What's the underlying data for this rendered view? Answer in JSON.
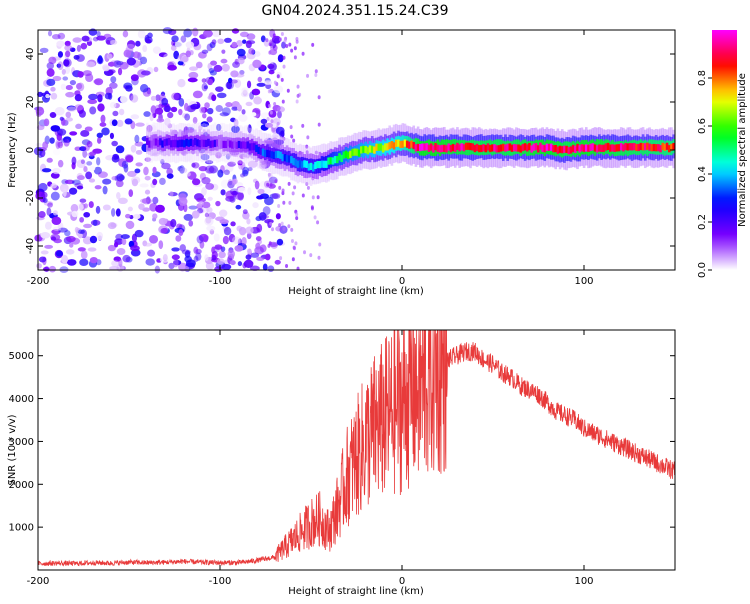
{
  "page_title": "GN04.2024.351.15.24.C39",
  "chart_data": [
    {
      "type": "heatmap",
      "xlabel": "Height of straight line (km)",
      "ylabel": "Frequency (Hz)",
      "xlim": [
        -200,
        150
      ],
      "ylim": [
        -50,
        50
      ],
      "x_ticks": [
        "-200",
        "-100",
        "0",
        "100"
      ],
      "y_ticks": [
        "-40",
        "-20",
        "0",
        "20",
        "40"
      ],
      "noise_region_x": [
        -200,
        -75
      ],
      "ridge": {
        "x": [
          -140,
          -120,
          -100,
          -85,
          -75,
          -65,
          -55,
          -48,
          -40,
          -30,
          -20,
          -10,
          0,
          5,
          10,
          20,
          40,
          60,
          80,
          90,
          100,
          120,
          150
        ],
        "y": [
          3,
          3,
          3,
          2,
          -1,
          -3,
          -6,
          -7,
          -5,
          -2,
          0,
          1,
          3,
          2,
          1,
          1,
          1,
          1,
          1,
          0,
          1,
          1,
          1
        ],
        "amplitude": [
          0.15,
          0.25,
          0.15,
          0.2,
          0.3,
          0.35,
          0.4,
          0.4,
          0.5,
          0.6,
          0.65,
          0.7,
          0.75,
          0.85,
          0.95,
          0.95,
          0.9,
          0.9,
          0.95,
          0.9,
          0.95,
          0.9,
          0.85
        ]
      },
      "colorbar": {
        "label": "Normalized spectral amplitude",
        "ticks": [
          "0.0",
          "0.2",
          "0.4",
          "0.6",
          "0.8"
        ],
        "range": [
          0,
          1
        ],
        "colors": [
          "#ffffff",
          "#7b00ff",
          "#0000ff",
          "#00ffff",
          "#00ff00",
          "#ffff00",
          "#ff0000",
          "#ff00ff"
        ]
      },
      "grid": false
    },
    {
      "type": "line",
      "xlabel": "Height of straight line (km)",
      "ylabel": "SNR (10 * v/v)",
      "xlim": [
        -200,
        150
      ],
      "ylim": [
        0,
        5600
      ],
      "x_ticks": [
        "-200",
        "-100",
        "0",
        "100"
      ],
      "y_ticks": [
        "1000",
        "2000",
        "3000",
        "4000",
        "5000"
      ],
      "color": "#e83a3a",
      "series": [
        {
          "x": [
            -200,
            -190,
            -180,
            -170,
            -160,
            -150,
            -140,
            -130,
            -120,
            -110,
            -100,
            -90,
            -80,
            -70,
            -65,
            -60,
            -55,
            -50,
            -45,
            -40,
            -35,
            -30,
            -25,
            -20,
            -15,
            -10,
            -5,
            0,
            5,
            10,
            15,
            20,
            25,
            30,
            35,
            40,
            45,
            50,
            55,
            60,
            65,
            70,
            75,
            80,
            85,
            90,
            95,
            100,
            110,
            120,
            130,
            140,
            150
          ],
          "y": [
            150,
            160,
            150,
            170,
            160,
            180,
            170,
            180,
            200,
            180,
            170,
            170,
            220,
            300,
            500,
            700,
            900,
            1100,
            1200,
            900,
            1500,
            2200,
            2600,
            3000,
            3300,
            3500,
            3700,
            3900,
            4200,
            4300,
            4500,
            4700,
            4900,
            5000,
            5100,
            5100,
            4900,
            4800,
            4600,
            4500,
            4300,
            4200,
            4100,
            3900,
            3700,
            3600,
            3500,
            3300,
            3100,
            2900,
            2700,
            2500,
            2300
          ]
        }
      ],
      "grid": false
    }
  ]
}
